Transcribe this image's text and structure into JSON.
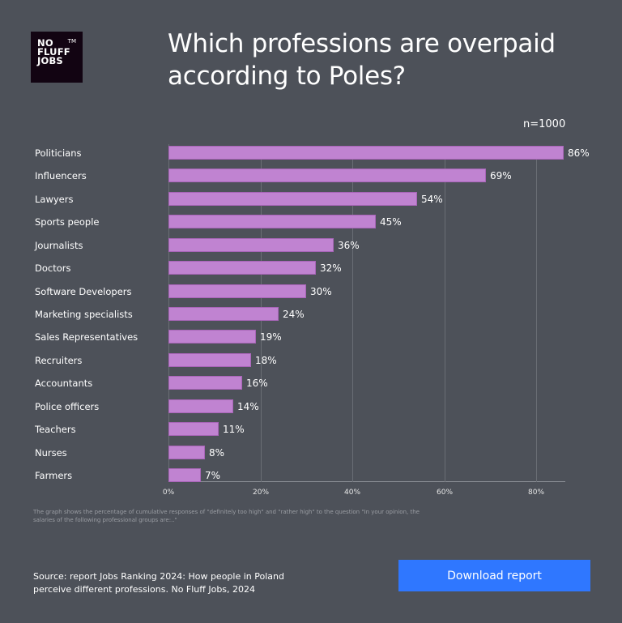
{
  "logo": {
    "lines": [
      "NO",
      "FLUFF",
      "JOBS"
    ],
    "tm": "TM"
  },
  "header": {
    "title": "Which professions are overpaid according to Poles?"
  },
  "sample": "n=1000",
  "chart_data": {
    "type": "bar",
    "orientation": "horizontal",
    "title": "Which professions are overpaid according to Poles?",
    "subtitle": "n=1000",
    "categories": [
      "Politicians",
      "Influencers",
      "Lawyers",
      "Sports people",
      "Journalists",
      "Doctors",
      "Software Developers",
      "Marketing specialists",
      "Sales Representatives",
      "Recruiters",
      "Accountants",
      "Police officers",
      "Teachers",
      "Nurses",
      "Farmers"
    ],
    "values": [
      86,
      69,
      54,
      45,
      36,
      32,
      30,
      24,
      19,
      18,
      16,
      14,
      11,
      8,
      7
    ],
    "value_labels": [
      "86%",
      "69%",
      "54%",
      "45%",
      "36%",
      "32%",
      "30%",
      "24%",
      "19%",
      "18%",
      "16%",
      "14%",
      "11%",
      "8%",
      "7%"
    ],
    "xlabel": "",
    "ylabel": "",
    "xlim": [
      0,
      86
    ],
    "x_ticks": [
      "0%",
      "20%",
      "40%",
      "60%",
      "80%"
    ],
    "grid": true,
    "bar_color": "#c083d1"
  },
  "note": "The graph shows the percentage of cumulative responses of \"definitely too high\" and \"rather high\" to the question \"In your opinion, the salaries of the following professional groups are:..\"",
  "footer": {
    "source": "Source: report Jobs Ranking 2024: How people in Poland perceive different professions. No Fluff Jobs, 2024",
    "download_label": "Download report"
  },
  "colors": {
    "background": "#4d5159",
    "bar": "#c083d1",
    "button": "#2f77ff",
    "logo_bg": "#120412"
  }
}
